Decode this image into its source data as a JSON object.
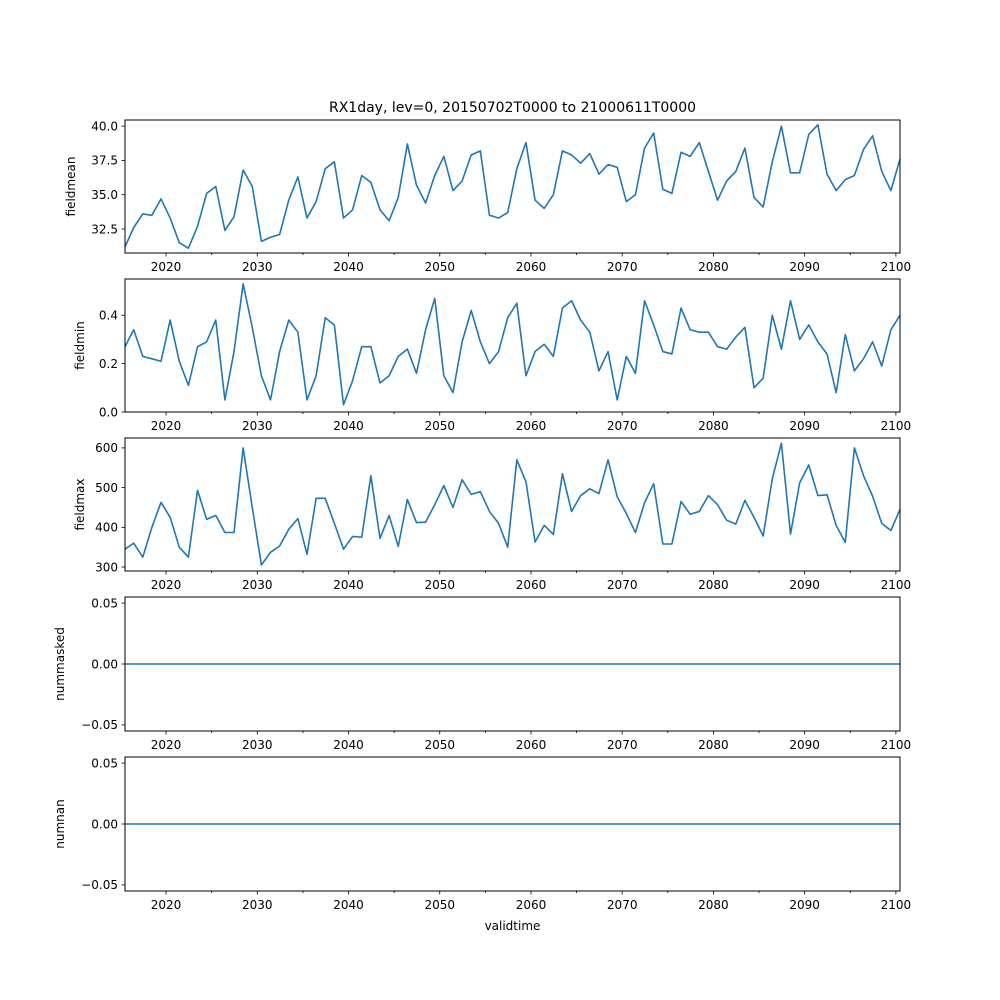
{
  "chart_data": {
    "type": "line",
    "title": "RX1day, lev=0, 20150702T0000 to 21000611T0000",
    "xlabel": "validtime",
    "xlim": [
      2015.5,
      2100.45
    ],
    "x_ticks": [
      2020,
      2030,
      2040,
      2050,
      2060,
      2070,
      2080,
      2090,
      2100
    ],
    "x_tick_labels": [
      "2020",
      "2030",
      "2040",
      "2050",
      "2060",
      "2070",
      "2080",
      "2090",
      "2100"
    ],
    "x_minor_ticks": [
      2025,
      2035,
      2045,
      2055,
      2065,
      2075,
      2085,
      2095
    ],
    "series_color": "#1f77b4",
    "x": [
      2015.5,
      2016.45,
      2017.45,
      2018.45,
      2019.45,
      2020.45,
      2021.45,
      2022.45,
      2023.45,
      2024.45,
      2025.45,
      2026.45,
      2027.45,
      2028.45,
      2029.45,
      2030.45,
      2031.45,
      2032.45,
      2033.45,
      2034.45,
      2035.45,
      2036.45,
      2037.45,
      2038.45,
      2039.45,
      2040.45,
      2041.45,
      2042.45,
      2043.45,
      2044.45,
      2045.45,
      2046.45,
      2047.45,
      2048.45,
      2049.45,
      2050.45,
      2051.45,
      2052.45,
      2053.45,
      2054.45,
      2055.45,
      2056.45,
      2057.45,
      2058.45,
      2059.45,
      2060.45,
      2061.45,
      2062.45,
      2063.45,
      2064.45,
      2065.45,
      2066.45,
      2067.45,
      2068.45,
      2069.45,
      2070.45,
      2071.45,
      2072.45,
      2073.45,
      2074.45,
      2075.45,
      2076.45,
      2077.45,
      2078.45,
      2079.45,
      2080.45,
      2081.45,
      2082.45,
      2083.45,
      2084.45,
      2085.45,
      2086.45,
      2087.45,
      2088.45,
      2089.45,
      2090.45,
      2091.45,
      2092.45,
      2093.45,
      2094.45,
      2095.45,
      2096.45,
      2097.45,
      2098.45,
      2099.45,
      2100.45
    ],
    "panels": [
      {
        "ylabel": "fieldmean",
        "ylim": [
          30.75,
          40.45
        ],
        "y_ticks": [
          32.5,
          35.0,
          37.5,
          40.0
        ],
        "y_tick_labels": [
          "32.5",
          "35.0",
          "37.5",
          "40.0"
        ],
        "values": [
          31.2,
          32.6,
          33.6,
          33.5,
          34.7,
          33.3,
          31.5,
          31.1,
          32.7,
          35.1,
          35.6,
          32.4,
          33.4,
          36.8,
          35.6,
          31.6,
          31.9,
          32.1,
          34.6,
          36.3,
          33.3,
          34.5,
          36.9,
          37.4,
          33.3,
          33.9,
          36.4,
          35.9,
          33.9,
          33.1,
          34.8,
          38.7,
          35.7,
          34.4,
          36.4,
          37.8,
          35.3,
          36.0,
          37.9,
          38.2,
          33.5,
          33.3,
          33.7,
          36.9,
          38.8,
          34.6,
          34.0,
          35.0,
          38.2,
          37.9,
          37.3,
          38.0,
          36.5,
          37.2,
          37.0,
          34.5,
          35.0,
          38.4,
          39.5,
          35.4,
          35.1,
          38.1,
          37.8,
          38.8,
          36.7,
          34.6,
          36.0,
          36.7,
          38.4,
          34.8,
          34.1,
          37.4,
          40.0,
          36.6,
          36.6,
          39.4,
          40.1,
          36.5,
          35.3,
          36.1,
          36.4,
          38.3,
          39.3,
          36.7,
          35.3,
          37.6
        ]
      },
      {
        "ylabel": "fieldmin",
        "ylim": [
          0.0,
          0.55
        ],
        "y_ticks": [
          0.0,
          0.2,
          0.4
        ],
        "y_tick_labels": [
          "0.0",
          "0.2",
          "0.4"
        ],
        "values": [
          0.27,
          0.34,
          0.23,
          0.22,
          0.21,
          0.38,
          0.21,
          0.11,
          0.27,
          0.29,
          0.38,
          0.05,
          0.25,
          0.53,
          0.35,
          0.15,
          0.05,
          0.25,
          0.38,
          0.33,
          0.05,
          0.15,
          0.39,
          0.36,
          0.03,
          0.13,
          0.27,
          0.27,
          0.12,
          0.15,
          0.23,
          0.26,
          0.16,
          0.34,
          0.47,
          0.15,
          0.08,
          0.29,
          0.42,
          0.29,
          0.2,
          0.25,
          0.39,
          0.45,
          0.15,
          0.25,
          0.28,
          0.23,
          0.43,
          0.46,
          0.38,
          0.33,
          0.17,
          0.25,
          0.05,
          0.23,
          0.16,
          0.46,
          0.36,
          0.25,
          0.24,
          0.43,
          0.34,
          0.33,
          0.33,
          0.27,
          0.26,
          0.31,
          0.35,
          0.1,
          0.14,
          0.4,
          0.26,
          0.46,
          0.3,
          0.36,
          0.29,
          0.24,
          0.08,
          0.32,
          0.17,
          0.22,
          0.29,
          0.19,
          0.34,
          0.4
        ]
      },
      {
        "ylabel": "fieldmax",
        "ylim": [
          290,
          625
        ],
        "y_ticks": [
          300,
          400,
          500,
          600
        ],
        "y_tick_labels": [
          "300",
          "400",
          "500",
          "600"
        ],
        "values": [
          345,
          360,
          325,
          400,
          463,
          425,
          350,
          325,
          493,
          420,
          430,
          387,
          387,
          600,
          450,
          305,
          337,
          353,
          395,
          422,
          332,
          473,
          473,
          410,
          345,
          377,
          375,
          530,
          372,
          430,
          352,
          470,
          412,
          413,
          457,
          505,
          450,
          520,
          483,
          490,
          440,
          410,
          350,
          570,
          515,
          363,
          405,
          382,
          535,
          440,
          480,
          497,
          485,
          570,
          477,
          435,
          387,
          462,
          510,
          358,
          358,
          465,
          433,
          440,
          480,
          457,
          418,
          408,
          468,
          425,
          378,
          522,
          612,
          383,
          512,
          557,
          480,
          482,
          405,
          362,
          600,
          530,
          478,
          410,
          392,
          445
        ]
      },
      {
        "ylabel": "nummasked",
        "ylim": [
          -0.055,
          0.055
        ],
        "y_ticks": [
          -0.05,
          0.0,
          0.05
        ],
        "y_tick_labels": [
          "−0.05",
          "0.00",
          "0.05"
        ],
        "constant_value": 0
      },
      {
        "ylabel": "numnan",
        "ylim": [
          -0.055,
          0.055
        ],
        "y_ticks": [
          -0.05,
          0.0,
          0.05
        ],
        "y_tick_labels": [
          "−0.05",
          "0.00",
          "0.05"
        ],
        "constant_value": 0
      }
    ]
  }
}
